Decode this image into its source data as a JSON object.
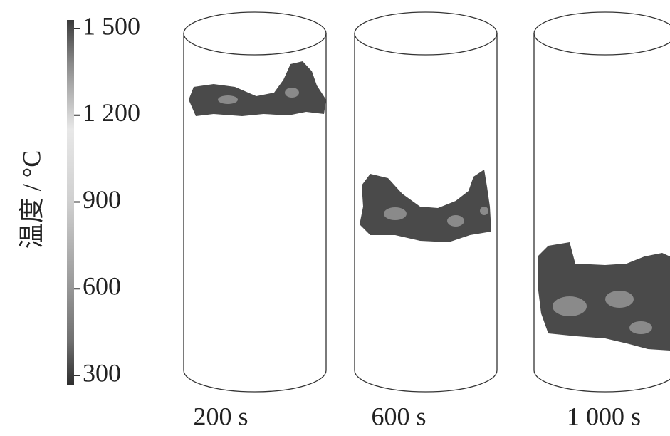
{
  "colorbar": {
    "title": "温度 / °C",
    "range": [
      300,
      1500
    ],
    "ticks": [
      {
        "value": 1500,
        "label": "1 500"
      },
      {
        "value": 1200,
        "label": "1 200"
      },
      300,
      600,
      900
    ]
  },
  "panels": [
    {
      "label": "200 s"
    },
    {
      "label": "600 s"
    },
    {
      "label": "1 000 s"
    }
  ]
}
